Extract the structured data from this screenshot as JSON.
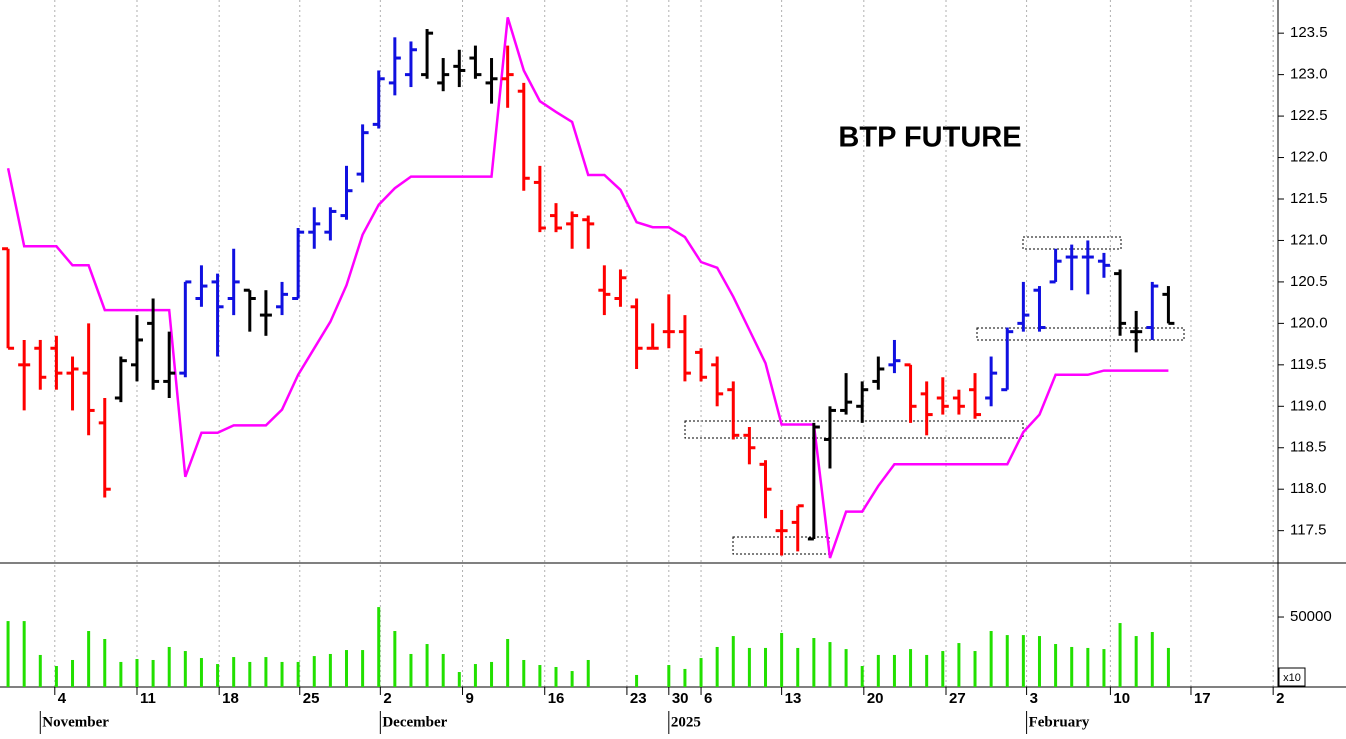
{
  "chart_data": {
    "type": "ohlc",
    "title": "BTP FUTURE",
    "x": [
      0,
      1,
      2,
      3,
      4,
      5,
      6,
      7,
      8,
      9,
      10,
      11,
      12,
      13,
      14,
      15,
      16,
      17,
      18,
      19,
      20,
      21,
      22,
      23,
      24,
      25,
      26,
      27,
      28,
      29,
      30,
      31,
      32,
      33,
      34,
      35,
      36,
      37,
      38,
      39,
      40,
      41,
      42,
      43,
      44,
      45,
      46,
      47,
      48,
      49,
      50,
      51,
      52,
      53,
      54,
      55,
      56,
      57,
      58,
      59,
      60,
      61,
      62,
      63,
      64,
      65,
      66,
      67,
      68,
      69,
      70,
      71,
      72
    ],
    "open": [
      120.9,
      119.5,
      119.7,
      119.7,
      119.4,
      119.4,
      118.8,
      119.1,
      119.5,
      120.0,
      119.3,
      119.4,
      120.3,
      120.5,
      120.3,
      120.4,
      120.1,
      120.2,
      120.3,
      121.1,
      121.1,
      121.3,
      121.8,
      122.4,
      122.9,
      123.0,
      123.0,
      122.9,
      123.1,
      123.2,
      122.9,
      122.95,
      122.8,
      121.7,
      121.3,
      121.2,
      121.25,
      120.4,
      120.3,
      120.2,
      119.7,
      119.9,
      119.9,
      119.65,
      119.5,
      119.2,
      118.65,
      118.3,
      117.5,
      117.6,
      117.4,
      118.6,
      118.95,
      119.0,
      119.3,
      119.5,
      119.5,
      119.15,
      119.1,
      119.1,
      119.2,
      119.1,
      119.2,
      120.0,
      120.4,
      120.5,
      120.8,
      120.8,
      120.75,
      120.6,
      119.9,
      119.95,
      120.35
    ],
    "high": [
      120.9,
      119.8,
      119.8,
      119.85,
      119.6,
      120.0,
      119.1,
      119.6,
      120.1,
      120.3,
      119.9,
      120.5,
      120.7,
      120.6,
      120.9,
      120.4,
      120.4,
      120.5,
      121.15,
      121.4,
      121.4,
      121.9,
      122.4,
      123.05,
      123.45,
      123.4,
      123.55,
      123.2,
      123.3,
      123.35,
      123.2,
      123.35,
      122.9,
      121.9,
      121.45,
      121.35,
      121.3,
      120.7,
      120.65,
      120.3,
      120.0,
      120.35,
      120.1,
      119.7,
      119.6,
      119.3,
      118.75,
      118.35,
      117.75,
      117.8,
      118.8,
      119.0,
      119.4,
      119.3,
      119.6,
      119.8,
      119.5,
      119.3,
      119.35,
      119.2,
      119.4,
      119.6,
      119.95,
      120.5,
      120.45,
      120.9,
      120.95,
      121.0,
      120.85,
      120.65,
      120.15,
      120.5,
      120.45
    ],
    "low": [
      119.7,
      118.95,
      119.2,
      119.2,
      118.95,
      118.65,
      117.9,
      119.05,
      119.3,
      119.2,
      119.1,
      119.35,
      120.2,
      119.6,
      120.1,
      119.9,
      119.85,
      120.1,
      120.3,
      120.9,
      121.0,
      121.25,
      121.7,
      122.35,
      122.75,
      122.85,
      122.95,
      122.8,
      122.85,
      122.95,
      122.65,
      122.6,
      121.6,
      121.1,
      121.1,
      120.9,
      120.9,
      120.1,
      120.2,
      119.45,
      119.7,
      119.7,
      119.3,
      119.3,
      119.0,
      118.6,
      118.3,
      117.65,
      117.2,
      117.25,
      117.4,
      118.25,
      118.9,
      118.8,
      119.2,
      119.4,
      118.8,
      118.65,
      118.9,
      118.9,
      118.85,
      119.0,
      119.2,
      119.9,
      119.9,
      120.5,
      120.4,
      120.35,
      120.55,
      119.85,
      119.65,
      119.8,
      120.0
    ],
    "close": [
      119.7,
      119.5,
      119.35,
      119.4,
      119.45,
      118.95,
      118.0,
      119.55,
      119.8,
      119.3,
      119.4,
      120.5,
      120.45,
      120.2,
      120.5,
      120.3,
      120.1,
      120.35,
      121.1,
      121.2,
      121.35,
      121.6,
      122.3,
      122.95,
      123.2,
      123.3,
      123.5,
      123.0,
      123.05,
      123.0,
      122.95,
      123.0,
      121.75,
      121.15,
      121.15,
      121.3,
      121.2,
      120.35,
      120.55,
      119.7,
      119.7,
      119.9,
      119.4,
      119.35,
      119.15,
      118.65,
      118.5,
      118.0,
      117.5,
      117.8,
      118.75,
      118.95,
      119.05,
      119.2,
      119.45,
      119.55,
      119.0,
      118.9,
      119.0,
      119.0,
      118.9,
      119.4,
      119.9,
      120.1,
      119.95,
      120.75,
      120.8,
      120.8,
      120.7,
      120.0,
      119.9,
      120.45,
      120.0
    ],
    "colors": [
      "#ff0000",
      "#ff0000",
      "#ff0000",
      "#ff0000",
      "#ff0000",
      "#ff0000",
      "#ff0000",
      "#000000",
      "#000000",
      "#000000",
      "#000000",
      "#1010e0",
      "#1010e0",
      "#1010e0",
      "#1010e0",
      "#000000",
      "#000000",
      "#1010e0",
      "#1010e0",
      "#1010e0",
      "#1010e0",
      "#1010e0",
      "#1010e0",
      "#1010e0",
      "#1010e0",
      "#1010e0",
      "#000000",
      "#000000",
      "#000000",
      "#000000",
      "#000000",
      "#ff0000",
      "#ff0000",
      "#ff0000",
      "#ff0000",
      "#ff0000",
      "#ff0000",
      "#ff0000",
      "#ff0000",
      "#ff0000",
      "#ff0000",
      "#ff0000",
      "#ff0000",
      "#ff0000",
      "#ff0000",
      "#ff0000",
      "#ff0000",
      "#ff0000",
      "#ff0000",
      "#ff0000",
      "#000000",
      "#000000",
      "#000000",
      "#000000",
      "#000000",
      "#1010e0",
      "#ff0000",
      "#ff0000",
      "#ff0000",
      "#ff0000",
      "#ff0000",
      "#1010e0",
      "#1010e0",
      "#1010e0",
      "#1010e0",
      "#1010e0",
      "#1010e0",
      "#1010e0",
      "#1010e0",
      "#000000",
      "#000000",
      "#1010e0",
      "#000000"
    ],
    "stop_line": {
      "color": "#ff00ff",
      "values": [
        121.87,
        120.93,
        120.93,
        120.93,
        120.7,
        120.7,
        120.16,
        120.16,
        120.16,
        120.16,
        120.16,
        118.15,
        118.68,
        118.68,
        118.77,
        118.77,
        118.77,
        118.96,
        119.38,
        119.7,
        120.02,
        120.46,
        121.07,
        121.43,
        121.63,
        121.77,
        121.77,
        121.77,
        121.77,
        121.77,
        121.77,
        123.69,
        123.05,
        122.68,
        122.55,
        122.43,
        121.79,
        121.79,
        121.61,
        121.22,
        121.16,
        121.16,
        121.04,
        120.74,
        120.67,
        120.32,
        119.92,
        119.52,
        118.78,
        118.78,
        118.78,
        117.17,
        117.73,
        117.73,
        118.04,
        118.3,
        118.3,
        118.3,
        118.3,
        118.3,
        118.3,
        118.3,
        118.3,
        118.69,
        118.9,
        119.38,
        119.38,
        119.38,
        119.43,
        119.43,
        119.43,
        119.43,
        119.43
      ]
    },
    "xlim": [
      -0.5,
      78.8
    ],
    "xticks": [
      {
        "value": 2.9,
        "label": "4"
      },
      {
        "value": 8.0,
        "label": "11"
      },
      {
        "value": 13.1,
        "label": "18"
      },
      {
        "value": 18.1,
        "label": "25"
      },
      {
        "value": 23.1,
        "label": "2"
      },
      {
        "value": 28.2,
        "label": "9"
      },
      {
        "value": 33.3,
        "label": "16"
      },
      {
        "value": 38.4,
        "label": "23"
      },
      {
        "value": 41.0,
        "label": "30"
      },
      {
        "value": 43.0,
        "label": "6"
      },
      {
        "value": 48.0,
        "label": "13"
      },
      {
        "value": 53.1,
        "label": "20"
      },
      {
        "value": 58.2,
        "label": "27"
      },
      {
        "value": 63.2,
        "label": "3"
      },
      {
        "value": 68.4,
        "label": "10"
      },
      {
        "value": 73.4,
        "label": "17"
      },
      {
        "value": 78.5,
        "label": "2"
      }
    ],
    "month_labels": [
      {
        "value": 2.0,
        "label": "November"
      },
      {
        "value": 23.1,
        "label": "December"
      },
      {
        "value": 41.0,
        "label": "2025"
      },
      {
        "value": 63.2,
        "label": "February"
      }
    ],
    "ylim": [
      117.11,
      123.9
    ],
    "yticks": [
      117.5,
      {
        "value": 118,
        "label": "118.0"
      },
      118.5,
      {
        "value": 119,
        "label": "119.0"
      },
      119.5,
      {
        "value": 120,
        "label": "120.0"
      },
      120.5,
      {
        "value": 121,
        "label": "121.0"
      },
      121.5,
      {
        "value": 122,
        "label": "122.0"
      },
      122.5,
      {
        "value": 123,
        "label": "123.0"
      },
      123.5
    ],
    "grid": true,
    "volume": {
      "color": "#22e000",
      "scale_label": "x10",
      "ylim": [
        0,
        88600
      ],
      "yticks": [
        50000
      ],
      "values": [
        47100,
        47100,
        22900,
        15000,
        19300,
        40000,
        34300,
        17900,
        20000,
        19300,
        28600,
        25700,
        20700,
        16400,
        21400,
        17900,
        21400,
        17900,
        17900,
        22100,
        23600,
        26400,
        26400,
        57100,
        40000,
        23600,
        30700,
        23600,
        10700,
        16400,
        17900,
        34300,
        19300,
        15700,
        14300,
        11400,
        19300,
        null,
        null,
        8600,
        null,
        15700,
        12900,
        20700,
        28600,
        36400,
        27900,
        27900,
        38600,
        27900,
        35000,
        32100,
        27100,
        15000,
        22900,
        22900,
        27100,
        22900,
        25700,
        31400,
        25700,
        40000,
        37100,
        37100,
        36400,
        30700,
        28600,
        27900,
        27100,
        45700,
        36400,
        39300,
        27900
      ]
    }
  }
}
